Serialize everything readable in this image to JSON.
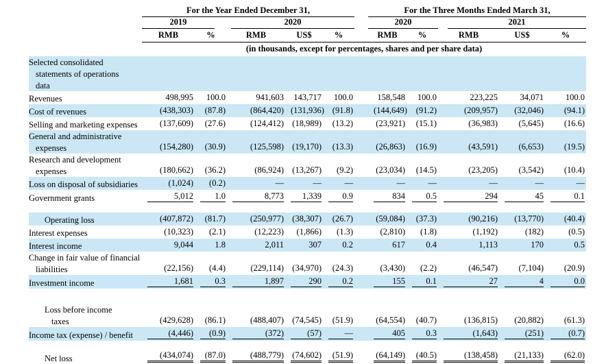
{
  "table": {
    "note": "(in thousands, except for percentages, shares and per share data)",
    "header": {
      "group1": {
        "title": "For the Year Ended December 31,",
        "years": [
          {
            "label": "2019",
            "cols": [
              "RMB",
              "%"
            ]
          },
          {
            "label": "2020",
            "cols": [
              "RMB",
              "US$",
              "%"
            ]
          }
        ]
      },
      "group2": {
        "title": "For the Three Months Ended March 31,",
        "years": [
          {
            "label": "2020",
            "cols": [
              "RMB",
              "%"
            ]
          },
          {
            "label": "2021",
            "cols": [
              "RMB",
              "US$",
              "%"
            ]
          }
        ]
      }
    },
    "rows": [
      {
        "lines": [
          "Selected consolidated",
          "statements of operations",
          "data"
        ],
        "bold": true,
        "bg": "blue",
        "rule": "none",
        "cells": [
          "",
          "",
          "",
          "",
          "",
          "",
          "",
          "",
          "",
          ""
        ]
      },
      {
        "lines": [
          "Revenues"
        ],
        "bold": false,
        "bg": "white",
        "rule": "none",
        "cells": [
          "498,995",
          "100.0",
          "941,603",
          "143,717",
          "100.0",
          "158,548",
          "100.0",
          "223,225",
          "34,071",
          "100.0"
        ]
      },
      {
        "lines": [
          "Cost of revenues"
        ],
        "bold": false,
        "bg": "blue",
        "rule": "none",
        "cells": [
          "(438,303)",
          "(87.8)",
          "(864,420)",
          "(131,936)",
          "(91.8)",
          "(144,649)",
          "(91.2)",
          "(209,957)",
          "(32,046)",
          "(94.1)"
        ]
      },
      {
        "lines": [
          "Selling and marketing expenses"
        ],
        "bold": false,
        "bg": "white",
        "rule": "none",
        "cells": [
          "(137,609)",
          "(27.6)",
          "(124,412)",
          "(18,989)",
          "(13.2)",
          "(23,921)",
          "(15.1)",
          "(36,983)",
          "(5,645)",
          "(16.6)"
        ]
      },
      {
        "lines": [
          "General and administrative",
          "expenses"
        ],
        "bold": false,
        "bg": "blue",
        "rule": "none",
        "cells": [
          "(154,280)",
          "(30.9)",
          "(125,598)",
          "(19,170)",
          "(13.3)",
          "(26,863)",
          "(16.9)",
          "(43,591)",
          "(6,653)",
          "(19.5)"
        ]
      },
      {
        "lines": [
          "Research and development",
          "expenses"
        ],
        "bold": false,
        "bg": "white",
        "rule": "none",
        "cells": [
          "(180,662)",
          "(36.2)",
          "(86,924)",
          "(13,267)",
          "(9.2)",
          "(23,034)",
          "(14.5)",
          "(23,205)",
          "(3,542)",
          "(10.4)"
        ]
      },
      {
        "lines": [
          "Loss on disposal of subsidiaries"
        ],
        "bold": false,
        "bg": "blue",
        "rule": "none",
        "cells": [
          "(1,024)",
          "(0.2)",
          "—",
          "—",
          "—",
          "—",
          "—",
          "—",
          "—",
          "—"
        ]
      },
      {
        "lines": [
          "Government grants"
        ],
        "bold": false,
        "bg": "white",
        "rule": "single",
        "cells": [
          "5,012",
          "1.0",
          "8,773",
          "1,339",
          "0.9",
          "834",
          "0.5",
          "294",
          "45",
          "0.1"
        ]
      },
      {
        "spacer": 13
      },
      {
        "lines": [
          "Operating loss"
        ],
        "indent": 23,
        "bold": true,
        "bg": "blue",
        "rule": "none",
        "cells": [
          "(407,872)",
          "(81.7)",
          "(250,977)",
          "(38,307)",
          "(26.7)",
          "(59,084)",
          "(37.3)",
          "(90,216)",
          "(13,770)",
          "(40.4)"
        ]
      },
      {
        "lines": [
          "Interest expenses"
        ],
        "bold": false,
        "bg": "white",
        "rule": "none",
        "cells": [
          "(10,323)",
          "(2.1)",
          "(12,223)",
          "(1,866)",
          "(1.3)",
          "(2,810)",
          "(1.8)",
          "(1,192)",
          "(182)",
          "(0.5)"
        ]
      },
      {
        "lines": [
          "Interest income"
        ],
        "bold": false,
        "bg": "blue",
        "rule": "none",
        "cells": [
          "9,044",
          "1.8",
          "2,011",
          "307",
          "0.2",
          "617",
          "0.4",
          "1,113",
          "170",
          "0.5"
        ]
      },
      {
        "lines": [
          "Change in fair value of financial",
          "liabilities"
        ],
        "bold": false,
        "bg": "white",
        "rule": "none",
        "cells": [
          "(22,156)",
          "(4.4)",
          "(229,114)",
          "(34,970)",
          "(24.3)",
          "(3,430)",
          "(2.2)",
          "(46,547)",
          "(7,104)",
          "(20.9)"
        ]
      },
      {
        "lines": [
          "Investment income"
        ],
        "bold": false,
        "bg": "blue",
        "rule": "single",
        "cells": [
          "1,681",
          "0.3",
          "1,897",
          "290",
          "0.2",
          "155",
          "0.1",
          "27",
          "4",
          "0.0"
        ]
      },
      {
        "spacer": 22
      },
      {
        "lines": [
          "Loss before income",
          "taxes"
        ],
        "indent": 23,
        "bold": true,
        "bg": "white",
        "rule": "none",
        "cells": [
          "(429,628)",
          "(86.1)",
          "(488,407)",
          "(74,545)",
          "(51.9)",
          "(64,554)",
          "(40.7)",
          "(136,815)",
          "(20,882)",
          "(61.3)"
        ]
      },
      {
        "lines": [
          "Income tax (expense) / benefit"
        ],
        "bold": false,
        "bg": "blue",
        "rule": "single",
        "cells": [
          "(4,446)",
          "(0.9)",
          "(372)",
          "(57)",
          "—",
          "405",
          "0.3",
          "(1,643)",
          "(251)",
          "(0.7)"
        ]
      },
      {
        "spacer": 12
      },
      {
        "lines": [
          "Net loss"
        ],
        "indent": 23,
        "bold": true,
        "bg": "white",
        "rule": "double",
        "cells": [
          "(434,074)",
          "(87.0)",
          "(488,779)",
          "(74,602)",
          "(51.9)",
          "(64,149)",
          "(40.5)",
          "(138,458)",
          "(21,133)",
          "(62.0)"
        ]
      }
    ]
  }
}
